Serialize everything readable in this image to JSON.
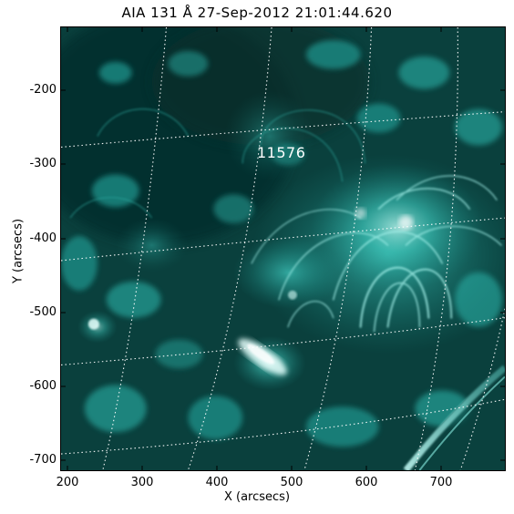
{
  "title": "AIA 131 Å 27-Sep-2012 21:01:44.620",
  "region_label": "11576",
  "x_axis": {
    "label": "X (arcsecs)",
    "ticks": [
      "200",
      "300",
      "400",
      "500",
      "600",
      "700"
    ]
  },
  "y_axis": {
    "label": "Y (arcsecs)",
    "ticks": [
      "-200",
      "-300",
      "-400",
      "-500",
      "-600",
      "-700"
    ]
  },
  "colors": {
    "background": "#0b3a38",
    "emission": "#33d1c4",
    "bright": "#d8fffb",
    "grid": "#ffffff"
  }
}
